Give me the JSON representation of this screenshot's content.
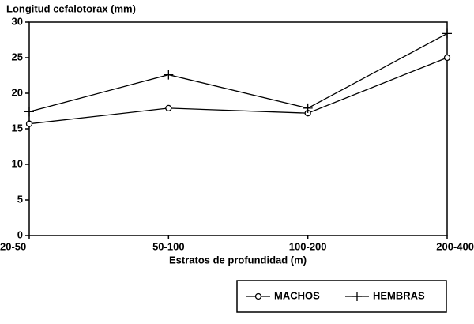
{
  "chart_data": {
    "type": "line",
    "title": "Longitud cefalotorax (mm)",
    "x_label": "Estratos de profundidad (m)",
    "categories": [
      "20-50",
      "50-100",
      "100-200",
      "200-400"
    ],
    "series": [
      {
        "name": "MACHOS",
        "color": "#000000",
        "marker": "circle",
        "values": [
          15.7,
          17.9,
          17.2,
          25
        ]
      },
      {
        "name": "HEMBRAS",
        "color": "#000000",
        "marker": "plus",
        "values": [
          17.4,
          22.6,
          17.9,
          28.4
        ]
      }
    ],
    "ylim": [
      0,
      30
    ],
    "yticks": [
      0,
      5,
      10,
      15,
      20,
      25,
      30
    ],
    "grid": false
  }
}
